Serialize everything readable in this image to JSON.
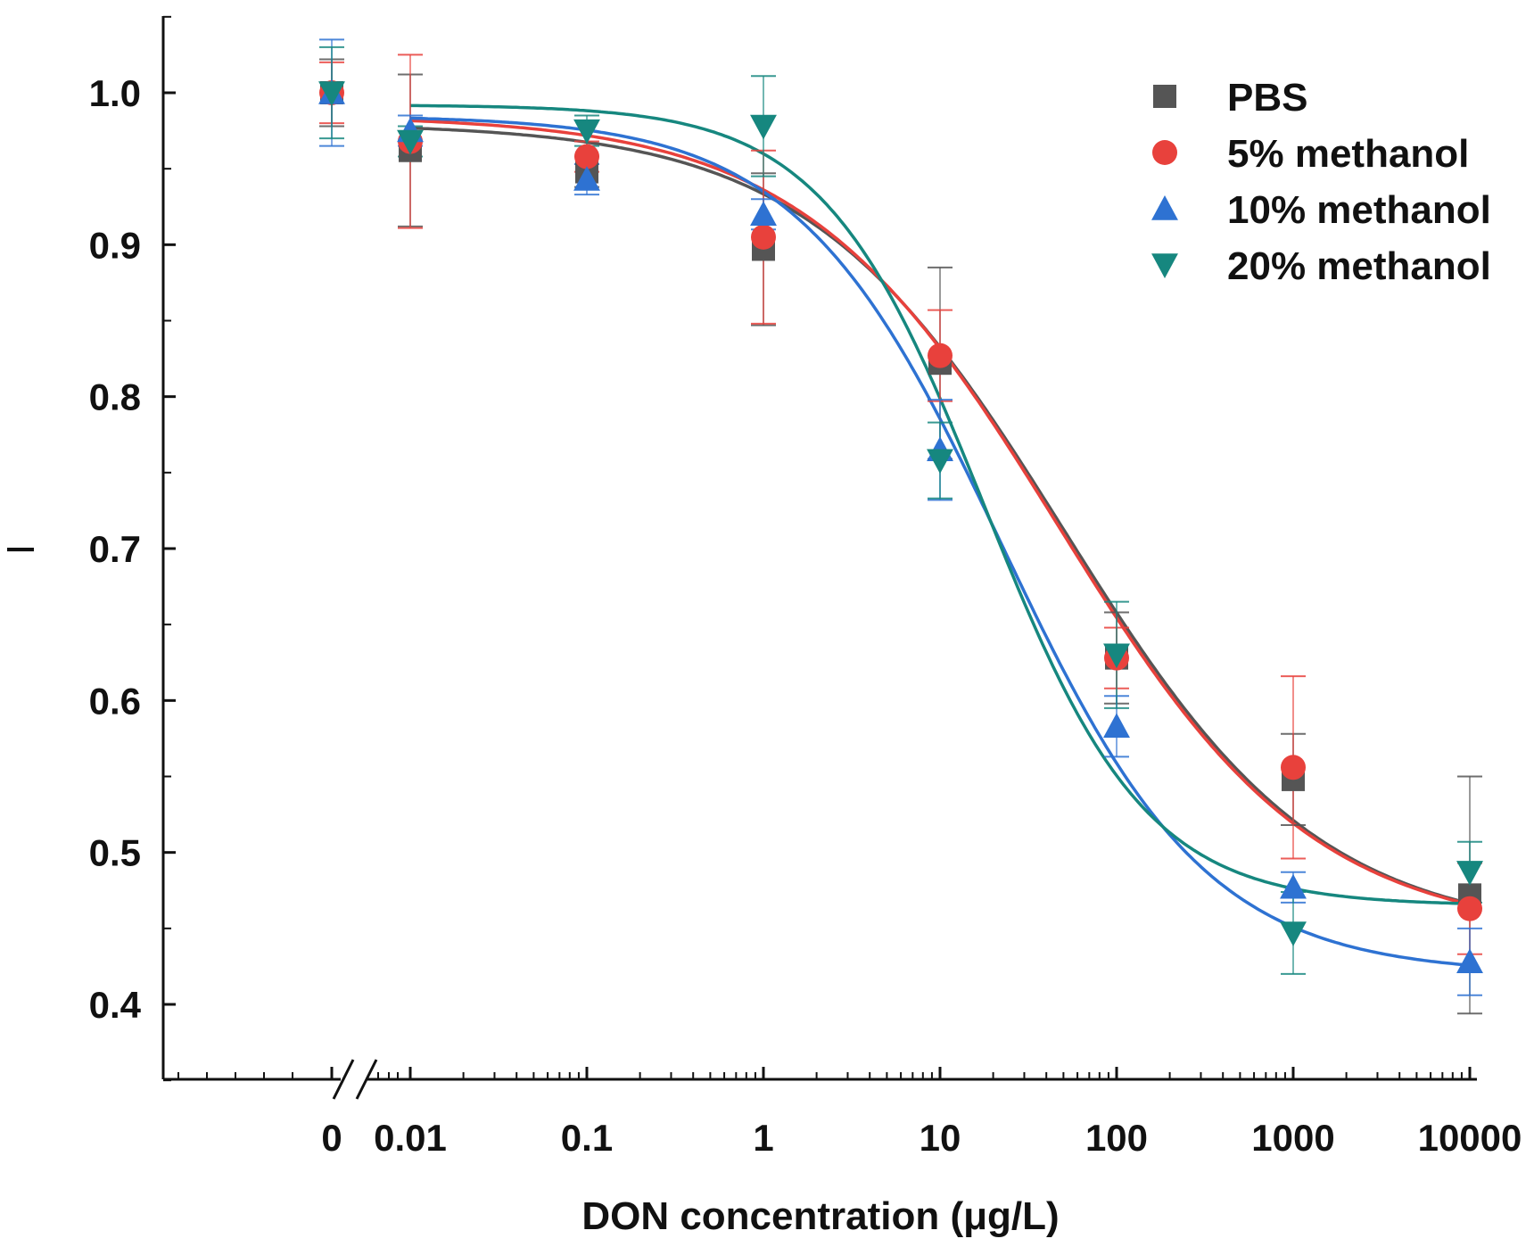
{
  "chart_data": {
    "type": "scatter",
    "title": "",
    "xlabel": "DON concentration (μg/L)",
    "ylabel": "I",
    "x_scale": "log-with-break",
    "x_ticks": [
      "0",
      "0.01",
      "0.1",
      "1",
      "10",
      "100",
      "1000",
      "10000"
    ],
    "y_ticks": [
      "0.4",
      "0.5",
      "0.6",
      "0.7",
      "0.8",
      "0.9",
      "1.0"
    ],
    "ylim": [
      0.35,
      1.05
    ],
    "x": [
      0,
      0.01,
      0.1,
      1,
      10,
      100,
      1000,
      10000
    ],
    "legend_position": "top-right",
    "series": [
      {
        "name": "PBS",
        "marker": "square",
        "color": "#555555",
        "values": [
          1.0,
          0.962,
          0.948,
          0.897,
          0.822,
          0.628,
          0.548,
          0.472
        ],
        "errors": [
          0.022,
          0.05,
          0.01,
          0.05,
          0.063,
          0.03,
          0.03,
          0.078
        ],
        "fit": {
          "top": 0.98,
          "bottom": 0.445,
          "log_ec50": 1.7,
          "slope": 0.6
        }
      },
      {
        "name": "5% methanol",
        "marker": "circle",
        "color": "#e8413c",
        "values": [
          1.0,
          0.968,
          0.958,
          0.905,
          0.827,
          0.628,
          0.556,
          0.463
        ],
        "errors": [
          0.02,
          0.057,
          0.01,
          0.057,
          0.03,
          0.02,
          0.06,
          0.03
        ],
        "fit": {
          "top": 0.985,
          "bottom": 0.445,
          "log_ec50": 1.67,
          "slope": 0.6
        }
      },
      {
        "name": "10% methanol",
        "marker": "triangle-up",
        "color": "#2e72d2",
        "values": [
          1.0,
          0.975,
          0.943,
          0.92,
          0.765,
          0.583,
          0.477,
          0.428
        ],
        "errors": [
          0.035,
          0.01,
          0.01,
          0.01,
          0.033,
          0.02,
          0.01,
          0.022
        ],
        "fit": {
          "top": 0.985,
          "bottom": 0.42,
          "log_ec50": 1.35,
          "slope": 0.75
        }
      },
      {
        "name": "20% methanol",
        "marker": "triangle-down",
        "color": "#16877f",
        "values": [
          1.0,
          0.968,
          0.975,
          0.978,
          0.758,
          0.63,
          0.447,
          0.487
        ],
        "errors": [
          0.03,
          0.01,
          0.01,
          0.033,
          0.025,
          0.035,
          0.027,
          0.02
        ],
        "fit": {
          "top": 0.992,
          "bottom": 0.465,
          "log_ec50": 1.25,
          "slope": 0.95
        }
      }
    ]
  }
}
